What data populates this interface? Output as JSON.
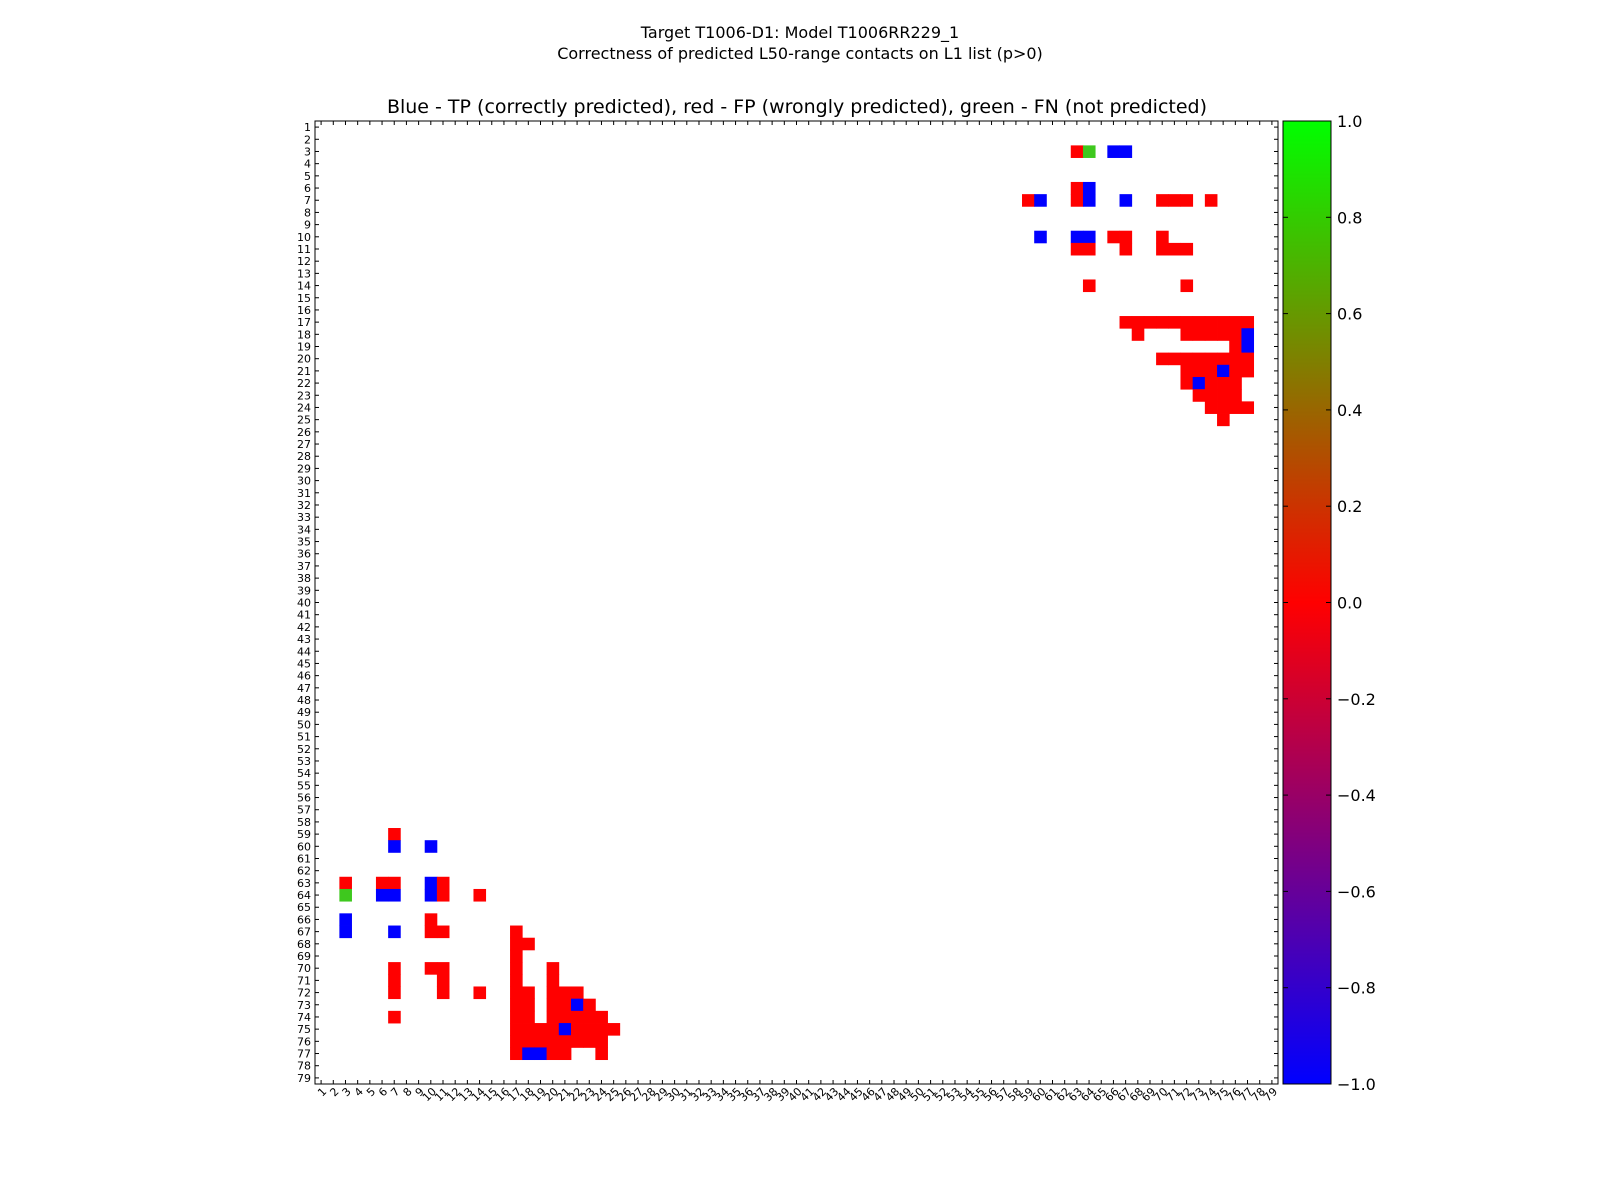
{
  "chart_data": {
    "type": "heatmap",
    "suptitle": [
      "Target T1006-D1: Model T1006RR229_1",
      "Correctness of predicted L50-range contacts on L1 list (p>0)"
    ],
    "title": "Blue - TP (correctly predicted), red - FP (wrongly predicted), green - FN (not predicted)",
    "x_range": [
      1,
      79
    ],
    "y_range": [
      1,
      79
    ],
    "legend": {
      "blue": "TP (correctly predicted)",
      "red": "FP (wrongly predicted)",
      "green": "FN (not predicted)"
    },
    "colorbar": {
      "range": [
        -1.0,
        1.0
      ],
      "ticks": [
        "1.0",
        "0.8",
        "0.6",
        "0.4",
        "0.2",
        "0.0",
        "−0.2",
        "−0.4",
        "−0.6",
        "−0.8",
        "−1.0"
      ],
      "tick_values": [
        1.0,
        0.8,
        0.6,
        0.4,
        0.2,
        0.0,
        -0.2,
        -0.4,
        -0.6,
        -0.8,
        -1.0
      ],
      "stops": [
        {
          "value": -1.0,
          "color": "#0000ff"
        },
        {
          "value": 0.0,
          "color": "#ff0000"
        },
        {
          "value": 1.0,
          "color": "#00ff00"
        }
      ]
    },
    "status_colors": {
      "TP": "#0000ff",
      "FP": "#ff0000",
      "FN": "#3ec81e"
    },
    "cells_upper": [
      {
        "row": 3,
        "cols": [
          [
            63,
            63,
            "FP"
          ],
          [
            64,
            64,
            "FN"
          ],
          [
            66,
            67,
            "TP"
          ]
        ]
      },
      {
        "row": 6,
        "cols": [
          [
            63,
            63,
            "FP"
          ],
          [
            64,
            64,
            "TP"
          ]
        ]
      },
      {
        "row": 7,
        "cols": [
          [
            59,
            59,
            "FP"
          ],
          [
            60,
            60,
            "TP"
          ],
          [
            63,
            63,
            "FP"
          ],
          [
            64,
            64,
            "TP"
          ],
          [
            67,
            67,
            "TP"
          ],
          [
            70,
            72,
            "FP"
          ],
          [
            74,
            74,
            "FP"
          ]
        ]
      },
      {
        "row": 10,
        "cols": [
          [
            60,
            60,
            "TP"
          ],
          [
            63,
            64,
            "TP"
          ],
          [
            66,
            67,
            "FP"
          ],
          [
            70,
            70,
            "FP"
          ]
        ]
      },
      {
        "row": 11,
        "cols": [
          [
            63,
            64,
            "FP"
          ],
          [
            67,
            67,
            "FP"
          ],
          [
            70,
            72,
            "FP"
          ]
        ]
      },
      {
        "row": 14,
        "cols": [
          [
            64,
            64,
            "FP"
          ],
          [
            72,
            72,
            "FP"
          ]
        ]
      },
      {
        "row": 17,
        "cols": [
          [
            67,
            77,
            "FP"
          ]
        ]
      },
      {
        "row": 18,
        "cols": [
          [
            68,
            68,
            "FP"
          ],
          [
            72,
            76,
            "FP"
          ],
          [
            77,
            77,
            "TP"
          ]
        ]
      },
      {
        "row": 19,
        "cols": [
          [
            76,
            76,
            "FP"
          ],
          [
            77,
            77,
            "TP"
          ]
        ]
      },
      {
        "row": 20,
        "cols": [
          [
            70,
            77,
            "FP"
          ]
        ]
      },
      {
        "row": 21,
        "cols": [
          [
            72,
            74,
            "FP"
          ],
          [
            75,
            75,
            "TP"
          ],
          [
            76,
            77,
            "FP"
          ]
        ]
      },
      {
        "row": 22,
        "cols": [
          [
            72,
            72,
            "FP"
          ],
          [
            73,
            73,
            "TP"
          ],
          [
            74,
            76,
            "FP"
          ]
        ]
      },
      {
        "row": 23,
        "cols": [
          [
            73,
            76,
            "FP"
          ]
        ]
      },
      {
        "row": 24,
        "cols": [
          [
            74,
            77,
            "FP"
          ]
        ]
      },
      {
        "row": 25,
        "cols": [
          [
            75,
            75,
            "FP"
          ]
        ]
      }
    ],
    "cells_lower": [
      {
        "row": 59,
        "cols": [
          [
            7,
            7,
            "FP"
          ]
        ]
      },
      {
        "row": 60,
        "cols": [
          [
            7,
            7,
            "TP"
          ],
          [
            10,
            10,
            "TP"
          ]
        ]
      },
      {
        "row": 63,
        "cols": [
          [
            3,
            3,
            "FP"
          ],
          [
            6,
            7,
            "FP"
          ],
          [
            10,
            10,
            "TP"
          ],
          [
            11,
            11,
            "FP"
          ]
        ]
      },
      {
        "row": 64,
        "cols": [
          [
            3,
            3,
            "FN"
          ],
          [
            6,
            7,
            "TP"
          ],
          [
            10,
            10,
            "TP"
          ],
          [
            11,
            11,
            "FP"
          ],
          [
            14,
            14,
            "FP"
          ]
        ]
      },
      {
        "row": 66,
        "cols": [
          [
            3,
            3,
            "TP"
          ],
          [
            10,
            10,
            "FP"
          ]
        ]
      },
      {
        "row": 67,
        "cols": [
          [
            3,
            3,
            "TP"
          ],
          [
            7,
            7,
            "TP"
          ],
          [
            10,
            11,
            "FP"
          ],
          [
            17,
            17,
            "FP"
          ]
        ]
      },
      {
        "row": 68,
        "cols": [
          [
            17,
            18,
            "FP"
          ]
        ]
      },
      {
        "row": 69,
        "cols": [
          [
            17,
            17,
            "FP"
          ]
        ]
      },
      {
        "row": 70,
        "cols": [
          [
            7,
            7,
            "FP"
          ],
          [
            10,
            11,
            "FP"
          ],
          [
            17,
            17,
            "FP"
          ],
          [
            20,
            20,
            "FP"
          ]
        ]
      },
      {
        "row": 71,
        "cols": [
          [
            7,
            7,
            "FP"
          ],
          [
            11,
            11,
            "FP"
          ],
          [
            17,
            17,
            "FP"
          ],
          [
            20,
            20,
            "FP"
          ]
        ]
      },
      {
        "row": 72,
        "cols": [
          [
            7,
            7,
            "FP"
          ],
          [
            11,
            11,
            "FP"
          ],
          [
            14,
            14,
            "FP"
          ],
          [
            17,
            18,
            "FP"
          ],
          [
            20,
            22,
            "FP"
          ]
        ]
      },
      {
        "row": 73,
        "cols": [
          [
            17,
            18,
            "FP"
          ],
          [
            20,
            21,
            "FP"
          ],
          [
            22,
            22,
            "TP"
          ],
          [
            23,
            23,
            "FP"
          ]
        ]
      },
      {
        "row": 74,
        "cols": [
          [
            7,
            7,
            "FP"
          ],
          [
            17,
            18,
            "FP"
          ],
          [
            20,
            24,
            "FP"
          ]
        ]
      },
      {
        "row": 75,
        "cols": [
          [
            17,
            20,
            "FP"
          ],
          [
            21,
            21,
            "TP"
          ],
          [
            22,
            25,
            "FP"
          ]
        ]
      },
      {
        "row": 76,
        "cols": [
          [
            17,
            24,
            "FP"
          ]
        ]
      },
      {
        "row": 77,
        "cols": [
          [
            17,
            17,
            "FP"
          ],
          [
            18,
            19,
            "TP"
          ],
          [
            20,
            21,
            "FP"
          ],
          [
            24,
            24,
            "FP"
          ]
        ]
      }
    ]
  }
}
